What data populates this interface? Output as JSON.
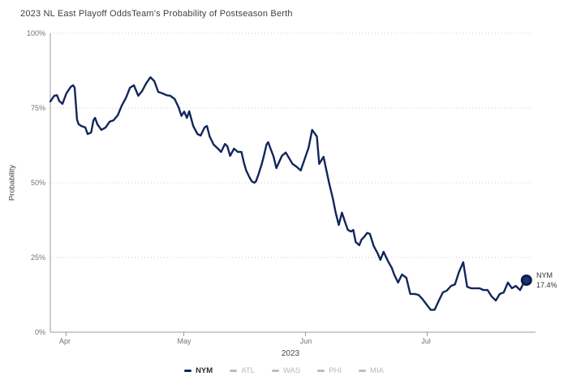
{
  "header": {
    "title": "2023 NL East Playoff Odds",
    "subtitle": "Team's Probability of Postseason Berth"
  },
  "colors": {
    "line": "#12265c",
    "dot_fill": "#1d3470",
    "dot_stroke": "#0c1c4e",
    "grid": "#cccccc",
    "axis": "#9b9b9b",
    "tick_text": "#737373",
    "title_text": "#3f3f3f",
    "legend_inactive": "#bcbcbc"
  },
  "legend": {
    "items": [
      {
        "label": "NYM",
        "color": "#12265c",
        "active": true
      },
      {
        "label": "ATL",
        "color": "#bcbcbc",
        "active": false
      },
      {
        "label": "WAS",
        "color": "#bcbcbc",
        "active": false
      },
      {
        "label": "PHI",
        "color": "#bcbcbc",
        "active": false
      },
      {
        "label": "MIA",
        "color": "#bcbcbc",
        "active": false
      }
    ]
  },
  "chart_data": {
    "type": "line",
    "title": "2023 NL East Playoff Odds",
    "subtitle": "Team's Probability of Postseason Berth",
    "ylabel": "Probability",
    "x_axis_year": "2023",
    "grid": "horizontal dotted",
    "legend_position": "bottom",
    "y_domain": [
      0,
      100
    ],
    "y_tick_labels": [
      "100%",
      "75%",
      "50%",
      "25%",
      "0%"
    ],
    "y_tick_values": [
      100,
      75,
      50,
      25,
      0
    ],
    "x_domain_days": [
      0,
      123
    ],
    "x_ticks": [
      {
        "label": "Apr",
        "day": 4
      },
      {
        "label": "May",
        "day": 34
      },
      {
        "label": "Jun",
        "day": 65
      },
      {
        "label": "Jul",
        "day": 96
      }
    ],
    "end_label": {
      "team": "NYM",
      "value": "17.4%"
    },
    "series": [
      {
        "name": "NYM",
        "color": "#12265c",
        "end_value_pct": 17.4,
        "points": [
          [
            0,
            77.2
          ],
          [
            1,
            79.1
          ],
          [
            1.7,
            79.3
          ],
          [
            2.3,
            77.3
          ],
          [
            3.1,
            76.4
          ],
          [
            4.1,
            79.9
          ],
          [
            5.2,
            82.1
          ],
          [
            5.8,
            82.6
          ],
          [
            6.2,
            81.8
          ],
          [
            6.8,
            71.2
          ],
          [
            7.2,
            69.6
          ],
          [
            7.9,
            69.0
          ],
          [
            8.9,
            68.5
          ],
          [
            9.5,
            66.3
          ],
          [
            10.4,
            66.8
          ],
          [
            11,
            70.9
          ],
          [
            11.4,
            71.7
          ],
          [
            12,
            69.6
          ],
          [
            13,
            67.7
          ],
          [
            14.1,
            68.5
          ],
          [
            15.1,
            70.4
          ],
          [
            16.1,
            70.9
          ],
          [
            17.2,
            72.6
          ],
          [
            18.2,
            75.8
          ],
          [
            19.3,
            78.5
          ],
          [
            20.3,
            81.8
          ],
          [
            21.3,
            82.6
          ],
          [
            22.4,
            79.1
          ],
          [
            23.4,
            80.7
          ],
          [
            24.4,
            83.2
          ],
          [
            25.5,
            85.3
          ],
          [
            26.5,
            84.0
          ],
          [
            27.5,
            80.4
          ],
          [
            28.6,
            79.9
          ],
          [
            29.6,
            79.3
          ],
          [
            30.6,
            79.1
          ],
          [
            31.7,
            78.0
          ],
          [
            32.7,
            75.2
          ],
          [
            33.4,
            72.4
          ],
          [
            34.1,
            73.8
          ],
          [
            34.8,
            71.7
          ],
          [
            35.4,
            73.9
          ],
          [
            36.4,
            69.0
          ],
          [
            37.5,
            66.3
          ],
          [
            38.3,
            65.8
          ],
          [
            39.3,
            68.5
          ],
          [
            39.9,
            69.0
          ],
          [
            40.6,
            65.5
          ],
          [
            41.6,
            62.8
          ],
          [
            42.7,
            61.4
          ],
          [
            43.5,
            60.3
          ],
          [
            44.5,
            63.0
          ],
          [
            45.1,
            62.2
          ],
          [
            45.8,
            59.0
          ],
          [
            46.8,
            61.4
          ],
          [
            47.8,
            60.3
          ],
          [
            48.7,
            60.3
          ],
          [
            49.3,
            56.8
          ],
          [
            49.9,
            54.1
          ],
          [
            50.7,
            51.9
          ],
          [
            51.3,
            50.5
          ],
          [
            52,
            50.0
          ],
          [
            52.4,
            50.5
          ],
          [
            53,
            52.7
          ],
          [
            53.8,
            56.0
          ],
          [
            54.4,
            59.0
          ],
          [
            55.1,
            62.8
          ],
          [
            55.5,
            63.6
          ],
          [
            56.1,
            61.4
          ],
          [
            56.9,
            58.7
          ],
          [
            57.6,
            54.9
          ],
          [
            59,
            59.0
          ],
          [
            60,
            60.1
          ],
          [
            61.7,
            56.3
          ],
          [
            62.7,
            55.4
          ],
          [
            63.8,
            54.1
          ],
          [
            65.8,
            61.7
          ],
          [
            66.7,
            67.7
          ],
          [
            67.9,
            65.5
          ],
          [
            68.5,
            56.3
          ],
          [
            69.6,
            58.7
          ],
          [
            71,
            50.0
          ],
          [
            72,
            44.6
          ],
          [
            72.7,
            40.0
          ],
          [
            73.5,
            35.9
          ],
          [
            74.3,
            40.0
          ],
          [
            75.2,
            36.4
          ],
          [
            75.8,
            34.2
          ],
          [
            76.6,
            33.7
          ],
          [
            77.2,
            34.2
          ],
          [
            77.8,
            30.2
          ],
          [
            78.7,
            29.1
          ],
          [
            79.3,
            31.0
          ],
          [
            79.9,
            31.8
          ],
          [
            80.7,
            33.2
          ],
          [
            81.4,
            32.9
          ],
          [
            82.4,
            28.8
          ],
          [
            83.4,
            26.4
          ],
          [
            84.1,
            24.2
          ],
          [
            84.9,
            26.9
          ],
          [
            86.1,
            23.6
          ],
          [
            87,
            21.5
          ],
          [
            87.6,
            19.3
          ],
          [
            88.6,
            16.6
          ],
          [
            89.6,
            19.3
          ],
          [
            90.7,
            18.2
          ],
          [
            91.7,
            12.8
          ],
          [
            92.8,
            12.8
          ],
          [
            93.8,
            12.5
          ],
          [
            94.8,
            11.1
          ],
          [
            95.9,
            9.2
          ],
          [
            96.9,
            7.5
          ],
          [
            97.9,
            7.5
          ],
          [
            99,
            10.6
          ],
          [
            100,
            13.3
          ],
          [
            101,
            13.9
          ],
          [
            102.1,
            15.5
          ],
          [
            103.1,
            16.0
          ],
          [
            104.1,
            20.1
          ],
          [
            105.2,
            23.4
          ],
          [
            106.2,
            15.2
          ],
          [
            107.2,
            14.7
          ],
          [
            108.3,
            14.7
          ],
          [
            109.3,
            14.7
          ],
          [
            110.4,
            14.1
          ],
          [
            111.4,
            14.1
          ],
          [
            112.4,
            12.0
          ],
          [
            113.5,
            10.6
          ],
          [
            114.5,
            12.8
          ],
          [
            115.5,
            13.3
          ],
          [
            116.6,
            16.6
          ],
          [
            117.6,
            14.7
          ],
          [
            118.6,
            15.5
          ],
          [
            119.7,
            14.1
          ],
          [
            120.7,
            16.8
          ],
          [
            121.3,
            17.4
          ]
        ]
      }
    ]
  }
}
